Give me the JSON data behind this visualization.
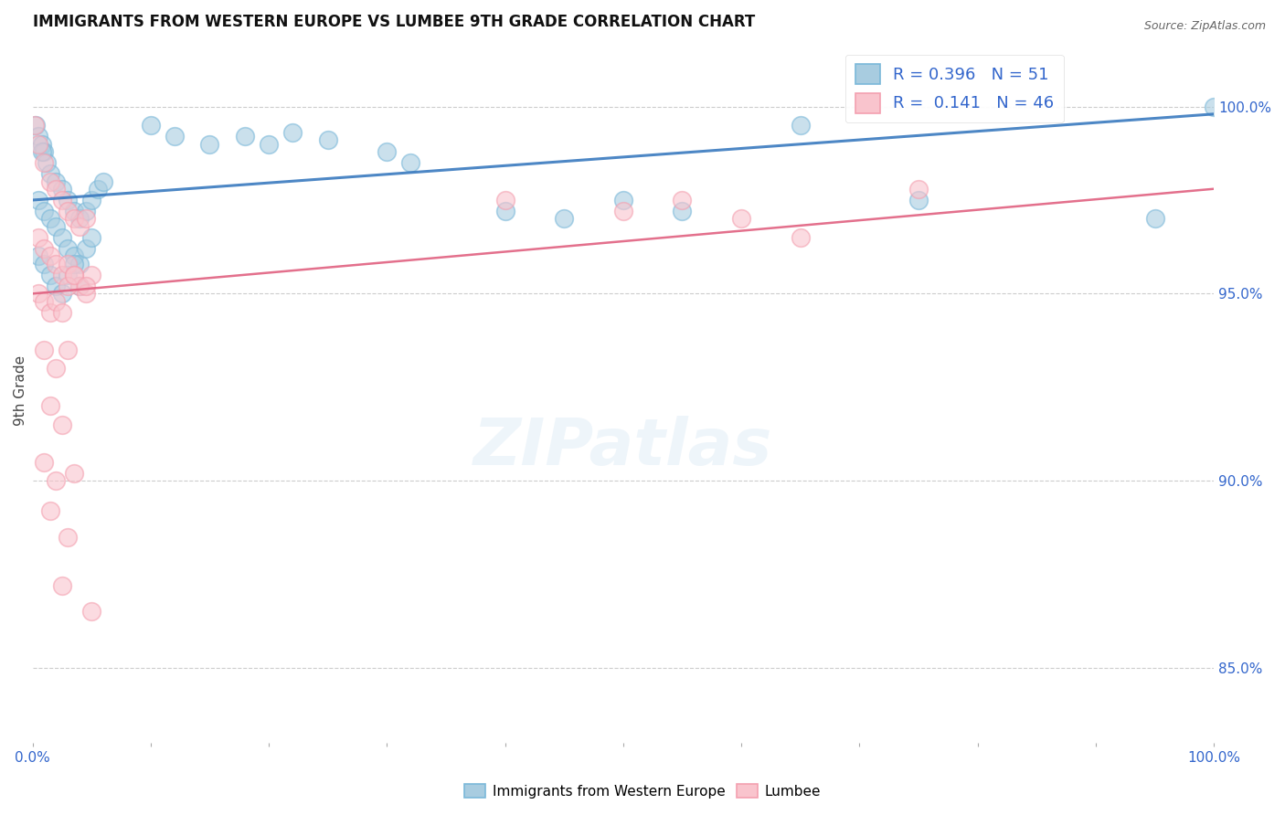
{
  "title": "IMMIGRANTS FROM WESTERN EUROPE VS LUMBEE 9TH GRADE CORRELATION CHART",
  "source": "Source: ZipAtlas.com",
  "ylabel": "9th Grade",
  "right_yticks": [
    100.0,
    95.0,
    90.0,
    85.0
  ],
  "legend_blue_R": "R = 0.396",
  "legend_blue_N": "N = 51",
  "legend_pink_R": "R =  0.141",
  "legend_pink_N": "N = 46",
  "blue_color": "#7ab8d9",
  "pink_color": "#f4a0b0",
  "blue_color_face": "#a8cce0",
  "pink_color_face": "#f9c4cd",
  "blue_line_color": "#3a7abf",
  "pink_line_color": "#e06080",
  "blue_scatter": [
    [
      0.3,
      99.5
    ],
    [
      0.5,
      99.2
    ],
    [
      0.8,
      99.0
    ],
    [
      1.0,
      98.8
    ],
    [
      1.2,
      98.5
    ],
    [
      1.5,
      98.2
    ],
    [
      2.0,
      98.0
    ],
    [
      2.5,
      97.8
    ],
    [
      3.0,
      97.5
    ],
    [
      3.5,
      97.2
    ],
    [
      4.0,
      97.0
    ],
    [
      4.5,
      97.2
    ],
    [
      5.0,
      97.5
    ],
    [
      5.5,
      97.8
    ],
    [
      6.0,
      98.0
    ],
    [
      0.5,
      97.5
    ],
    [
      1.0,
      97.2
    ],
    [
      1.5,
      97.0
    ],
    [
      2.0,
      96.8
    ],
    [
      2.5,
      96.5
    ],
    [
      3.0,
      96.2
    ],
    [
      3.5,
      96.0
    ],
    [
      4.0,
      95.8
    ],
    [
      4.5,
      96.2
    ],
    [
      5.0,
      96.5
    ],
    [
      0.5,
      96.0
    ],
    [
      1.0,
      95.8
    ],
    [
      1.5,
      95.5
    ],
    [
      2.0,
      95.2
    ],
    [
      2.5,
      95.0
    ],
    [
      3.0,
      95.5
    ],
    [
      3.5,
      95.8
    ],
    [
      4.0,
      95.2
    ],
    [
      0.8,
      98.8
    ],
    [
      10.0,
      99.5
    ],
    [
      12.0,
      99.2
    ],
    [
      15.0,
      99.0
    ],
    [
      18.0,
      99.2
    ],
    [
      20.0,
      99.0
    ],
    [
      22.0,
      99.3
    ],
    [
      25.0,
      99.1
    ],
    [
      30.0,
      98.8
    ],
    [
      32.0,
      98.5
    ],
    [
      40.0,
      97.2
    ],
    [
      45.0,
      97.0
    ],
    [
      50.0,
      97.5
    ],
    [
      55.0,
      97.2
    ],
    [
      65.0,
      99.5
    ],
    [
      75.0,
      97.5
    ],
    [
      95.0,
      97.0
    ],
    [
      100.0,
      100.0
    ]
  ],
  "pink_scatter": [
    [
      0.2,
      99.5
    ],
    [
      0.5,
      99.0
    ],
    [
      1.0,
      98.5
    ],
    [
      1.5,
      98.0
    ],
    [
      2.0,
      97.8
    ],
    [
      2.5,
      97.5
    ],
    [
      3.0,
      97.2
    ],
    [
      3.5,
      97.0
    ],
    [
      4.0,
      96.8
    ],
    [
      4.5,
      97.0
    ],
    [
      0.5,
      96.5
    ],
    [
      1.0,
      96.2
    ],
    [
      1.5,
      96.0
    ],
    [
      2.0,
      95.8
    ],
    [
      2.5,
      95.5
    ],
    [
      3.0,
      95.8
    ],
    [
      3.5,
      95.5
    ],
    [
      4.0,
      95.2
    ],
    [
      4.5,
      95.0
    ],
    [
      5.0,
      95.5
    ],
    [
      0.5,
      95.0
    ],
    [
      1.0,
      94.8
    ],
    [
      1.5,
      94.5
    ],
    [
      2.0,
      94.8
    ],
    [
      2.5,
      94.5
    ],
    [
      3.0,
      95.2
    ],
    [
      3.5,
      95.5
    ],
    [
      4.5,
      95.2
    ],
    [
      1.0,
      93.5
    ],
    [
      2.0,
      93.0
    ],
    [
      3.0,
      93.5
    ],
    [
      1.5,
      92.0
    ],
    [
      2.5,
      91.5
    ],
    [
      1.0,
      90.5
    ],
    [
      2.0,
      90.0
    ],
    [
      3.5,
      90.2
    ],
    [
      1.5,
      89.2
    ],
    [
      3.0,
      88.5
    ],
    [
      2.5,
      87.2
    ],
    [
      5.0,
      86.5
    ],
    [
      40.0,
      97.5
    ],
    [
      50.0,
      97.2
    ],
    [
      55.0,
      97.5
    ],
    [
      60.0,
      97.0
    ],
    [
      65.0,
      96.5
    ],
    [
      75.0,
      97.8
    ]
  ],
  "blue_line_x": [
    0,
    100
  ],
  "blue_line_y": [
    97.5,
    99.8
  ],
  "pink_line_x": [
    0,
    100
  ],
  "pink_line_y": [
    95.0,
    97.8
  ],
  "xlim": [
    0,
    100
  ],
  "ylim": [
    83.0,
    101.8
  ],
  "watermark": "ZIPatlas",
  "background_color": "#ffffff",
  "grid_color": "#cccccc",
  "title_fontsize": 12,
  "source_fontsize": 9,
  "tick_fontsize": 11,
  "ylabel_fontsize": 11
}
